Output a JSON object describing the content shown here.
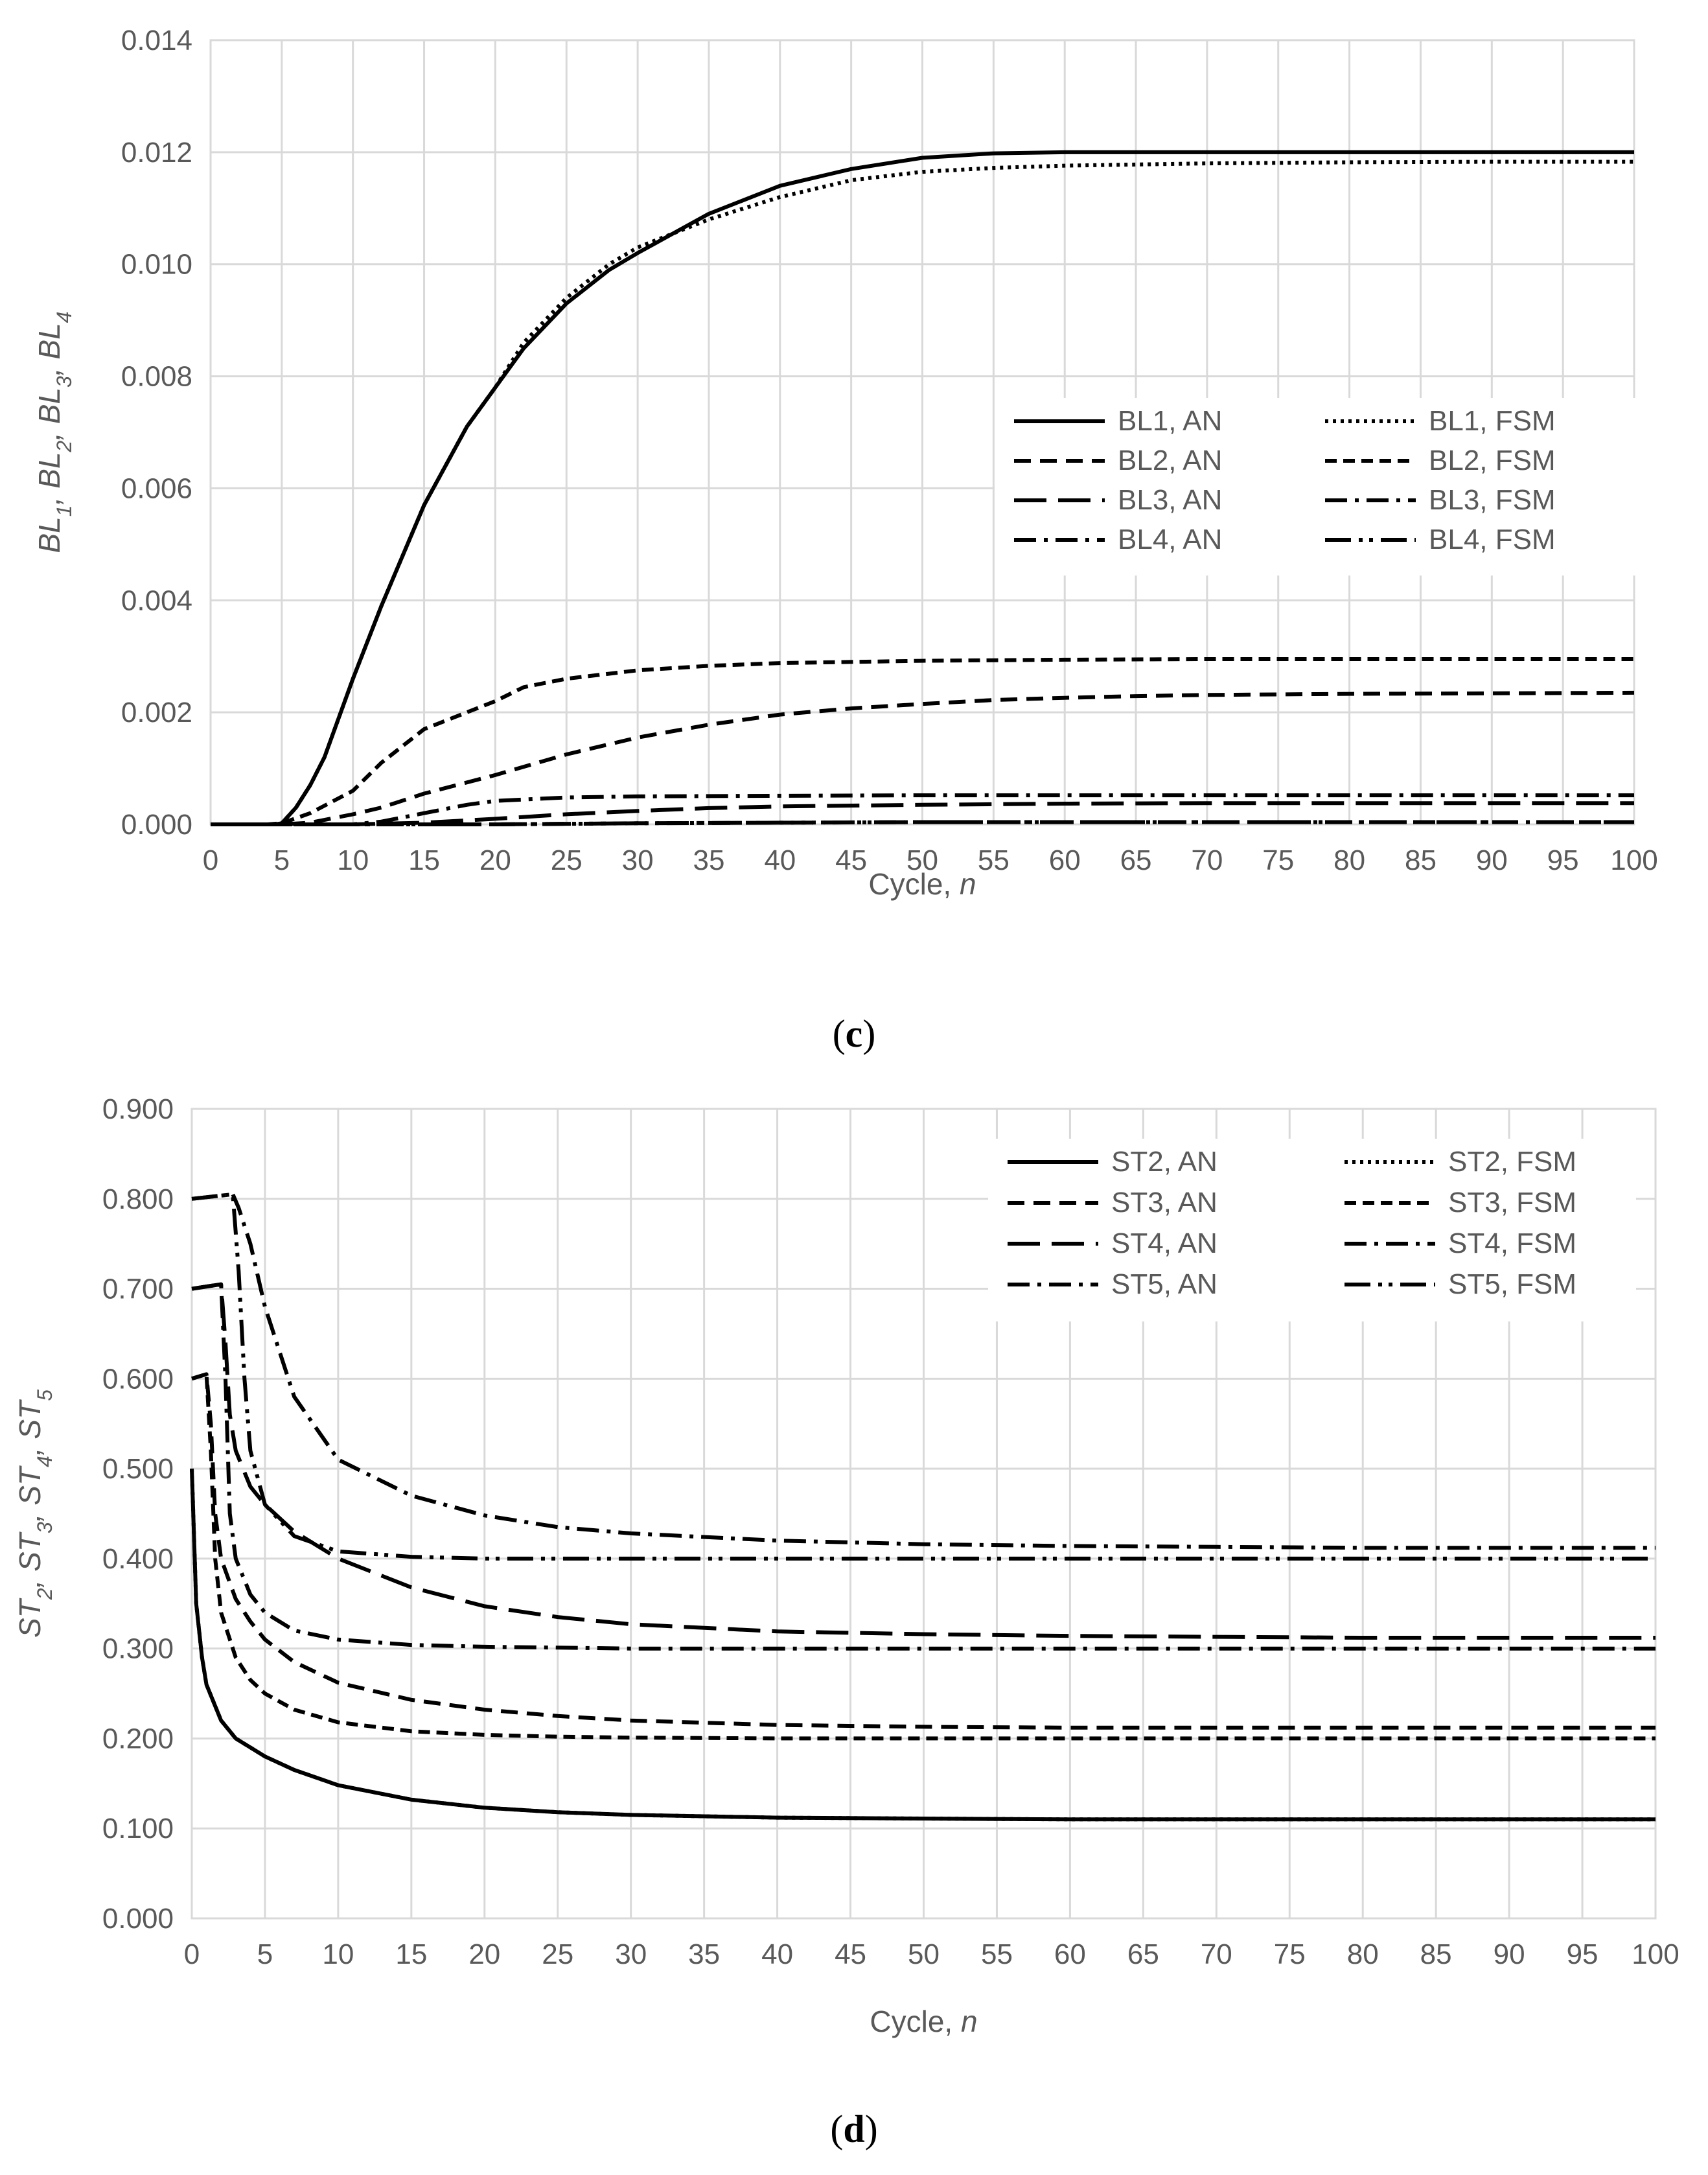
{
  "chart_data": [
    {
      "id": "c",
      "type": "line",
      "caption": "(c)",
      "xlabel": "Cycle, n",
      "ylabel": "BL1, BL2, BL3, BL4",
      "ylabel_parts": [
        {
          "t": "BL",
          "sub": "1"
        },
        {
          "t": ", BL",
          "sub": "2"
        },
        {
          "t": ", BL",
          "sub": "3"
        },
        {
          "t": ", BL",
          "sub": "4"
        }
      ],
      "xlim": [
        0,
        100
      ],
      "ylim": [
        0,
        0.014
      ],
      "x_ticks": [
        "0",
        "5",
        "10",
        "15",
        "20",
        "25",
        "30",
        "35",
        "40",
        "45",
        "50",
        "55",
        "60",
        "65",
        "70",
        "75",
        "80",
        "85",
        "90",
        "95",
        "100"
      ],
      "y_ticks": [
        "0.000",
        "0.002",
        "0.004",
        "0.006",
        "0.008",
        "0.010",
        "0.012",
        "0.014"
      ],
      "y_tick_values": [
        0,
        0.002,
        0.004,
        0.006,
        0.008,
        0.01,
        0.012,
        0.014
      ],
      "series": [
        {
          "name": "BL1, AN",
          "dash": "solid",
          "x": [
            0,
            4.5,
            5,
            6,
            7,
            8,
            10,
            12,
            15,
            18,
            20,
            22,
            25,
            28,
            30,
            35,
            40,
            45,
            50,
            55,
            60,
            70,
            80,
            90,
            100
          ],
          "y": [
            0,
            0,
            2e-05,
            0.0003,
            0.0007,
            0.0012,
            0.0026,
            0.0039,
            0.0057,
            0.0071,
            0.0078,
            0.0085,
            0.0093,
            0.0099,
            0.0102,
            0.0109,
            0.0114,
            0.0117,
            0.0119,
            0.01198,
            0.012,
            0.012,
            0.012,
            0.012,
            0.012
          ]
        },
        {
          "name": "BL2, AN",
          "dash": "dash",
          "x": [
            0,
            5,
            7,
            10,
            12,
            15,
            20,
            25,
            30,
            35,
            40,
            45,
            50,
            55,
            60,
            65,
            70,
            80,
            90,
            100
          ],
          "y": [
            0,
            0,
            3e-05,
            0.00018,
            0.0003,
            0.00055,
            0.00088,
            0.00125,
            0.00155,
            0.00178,
            0.00196,
            0.00207,
            0.00215,
            0.00222,
            0.00226,
            0.00229,
            0.00231,
            0.00233,
            0.00234,
            0.00235
          ]
        },
        {
          "name": "BL3, AN",
          "dash": "longdash",
          "x": [
            0,
            10,
            15,
            20,
            25,
            30,
            35,
            40,
            50,
            60,
            70,
            80,
            90,
            100
          ],
          "y": [
            0,
            0,
            3e-05,
            0.0001,
            0.00018,
            0.00024,
            0.00029,
            0.00032,
            0.00035,
            0.00037,
            0.00038,
            0.00038,
            0.00038,
            0.00038
          ]
        },
        {
          "name": "BL4, AN",
          "dash": "dashdot",
          "x": [
            0,
            20,
            30,
            40,
            50,
            60,
            70,
            80,
            90,
            100
          ],
          "y": [
            0,
            0,
            2e-05,
            3e-05,
            4e-05,
            4e-05,
            4e-05,
            4e-05,
            4e-05,
            4e-05
          ]
        },
        {
          "name": "BL1, FSM",
          "dash": "dot",
          "x": [
            0,
            4.5,
            5,
            6,
            7,
            8,
            10,
            12,
            15,
            18,
            20,
            22,
            25,
            28,
            30,
            35,
            40,
            45,
            50,
            55,
            60,
            70,
            80,
            90,
            100
          ],
          "y": [
            0,
            0,
            2e-05,
            0.0003,
            0.0007,
            0.0012,
            0.0026,
            0.0039,
            0.0057,
            0.0071,
            0.0078,
            0.0086,
            0.0094,
            0.01,
            0.0103,
            0.0108,
            0.0112,
            0.0115,
            0.01165,
            0.01172,
            0.01176,
            0.0118,
            0.01182,
            0.01183,
            0.01183
          ]
        },
        {
          "name": "BL2, FSM",
          "dash": "shortdash",
          "x": [
            0,
            4,
            5,
            7,
            10,
            12,
            15,
            18,
            20,
            22,
            25,
            30,
            35,
            40,
            50,
            60,
            70,
            80,
            90,
            100
          ],
          "y": [
            0,
            0,
            2e-05,
            0.0002,
            0.0006,
            0.0011,
            0.0017,
            0.002,
            0.0022,
            0.00245,
            0.0026,
            0.00275,
            0.00283,
            0.00288,
            0.00292,
            0.00294,
            0.00295,
            0.00295,
            0.00295,
            0.00295
          ]
        },
        {
          "name": "BL3, FSM",
          "dash": "dashdot",
          "x": [
            0,
            10,
            12,
            15,
            18,
            20,
            25,
            30,
            40,
            50,
            60,
            70,
            80,
            90,
            100
          ],
          "y": [
            0,
            0,
            5e-05,
            0.0002,
            0.00035,
            0.00042,
            0.00048,
            0.0005,
            0.00051,
            0.00052,
            0.00052,
            0.00052,
            0.00052,
            0.00052,
            0.00052
          ]
        },
        {
          "name": "BL4, FSM",
          "dash": "dashdotdot",
          "x": [
            0,
            20,
            30,
            40,
            50,
            60,
            70,
            80,
            90,
            100
          ],
          "y": [
            0,
            0,
            2e-05,
            3e-05,
            4e-05,
            4e-05,
            4e-05,
            4e-05,
            4e-05,
            4e-05
          ]
        }
      ]
    },
    {
      "id": "d",
      "type": "line",
      "caption": "(d)",
      "xlabel": "Cycle, n",
      "ylabel": "ST2, ST3, ST4, ST5",
      "ylabel_parts": [
        {
          "t": "ST",
          "sub": "2"
        },
        {
          "t": ", ST",
          "sub": "3"
        },
        {
          "t": ", ST",
          "sub": "4"
        },
        {
          "t": ", ST",
          "sub": "5"
        }
      ],
      "xlim": [
        0,
        100
      ],
      "ylim": [
        0,
        0.9
      ],
      "x_ticks": [
        "0",
        "5",
        "10",
        "15",
        "20",
        "25",
        "30",
        "35",
        "40",
        "45",
        "50",
        "55",
        "60",
        "65",
        "70",
        "75",
        "80",
        "85",
        "90",
        "95",
        "100"
      ],
      "y_ticks": [
        "0.000",
        "0.100",
        "0.200",
        "0.300",
        "0.400",
        "0.500",
        "0.600",
        "0.700",
        "0.800",
        "0.900"
      ],
      "y_tick_values": [
        0,
        0.1,
        0.2,
        0.3,
        0.4,
        0.5,
        0.6,
        0.7,
        0.8,
        0.9
      ],
      "series": [
        {
          "name": "ST2, AN",
          "dash": "solid",
          "x": [
            0,
            0.3,
            0.7,
            1,
            2,
            3,
            4,
            5,
            7,
            10,
            15,
            20,
            25,
            30,
            40,
            50,
            60,
            70,
            80,
            90,
            100
          ],
          "y": [
            0.5,
            0.35,
            0.29,
            0.26,
            0.22,
            0.2,
            0.19,
            0.18,
            0.165,
            0.148,
            0.132,
            0.123,
            0.118,
            0.115,
            0.112,
            0.111,
            0.11,
            0.11,
            0.11,
            0.11,
            0.11
          ]
        },
        {
          "name": "ST3, AN",
          "dash": "dash",
          "x": [
            0,
            1,
            1.3,
            1.6,
            2,
            3,
            4,
            5,
            7,
            10,
            15,
            20,
            25,
            30,
            40,
            50,
            60,
            70,
            80,
            90,
            100
          ],
          "y": [
            0.6,
            0.605,
            0.55,
            0.45,
            0.4,
            0.355,
            0.33,
            0.31,
            0.285,
            0.262,
            0.243,
            0.232,
            0.225,
            0.22,
            0.215,
            0.213,
            0.212,
            0.212,
            0.212,
            0.212,
            0.212
          ]
        },
        {
          "name": "ST4, AN",
          "dash": "longdash",
          "x": [
            0,
            2,
            2.3,
            2.6,
            3,
            4,
            5,
            7,
            10,
            15,
            20,
            25,
            30,
            40,
            50,
            60,
            70,
            80,
            90,
            100
          ],
          "y": [
            0.7,
            0.705,
            0.64,
            0.56,
            0.52,
            0.48,
            0.46,
            0.43,
            0.4,
            0.368,
            0.347,
            0.335,
            0.327,
            0.319,
            0.316,
            0.314,
            0.313,
            0.312,
            0.312,
            0.312
          ]
        },
        {
          "name": "ST5, AN",
          "dash": "dashdot",
          "x": [
            0,
            2.8,
            3.2,
            3.6,
            4,
            5,
            7,
            10,
            15,
            20,
            25,
            30,
            40,
            50,
            60,
            70,
            80,
            90,
            100
          ],
          "y": [
            0.8,
            0.805,
            0.79,
            0.77,
            0.75,
            0.68,
            0.58,
            0.51,
            0.47,
            0.448,
            0.435,
            0.428,
            0.42,
            0.416,
            0.414,
            0.413,
            0.412,
            0.412,
            0.412
          ]
        },
        {
          "name": "ST2, FSM",
          "dash": "dot",
          "x": [
            0,
            0.3,
            0.7,
            1,
            2,
            3,
            4,
            5,
            7,
            10,
            15,
            20,
            25,
            30,
            40,
            50,
            60,
            70,
            80,
            90,
            100
          ],
          "y": [
            0.5,
            0.35,
            0.29,
            0.26,
            0.22,
            0.2,
            0.19,
            0.18,
            0.165,
            0.148,
            0.132,
            0.123,
            0.118,
            0.115,
            0.112,
            0.111,
            0.11,
            0.11,
            0.11,
            0.11,
            0.11
          ]
        },
        {
          "name": "ST3, FSM",
          "dash": "shortdash",
          "x": [
            0,
            1,
            1.3,
            1.6,
            2,
            3,
            4,
            5,
            7,
            10,
            15,
            20,
            25,
            30,
            40,
            50,
            60,
            70,
            80,
            90,
            100
          ],
          "y": [
            0.6,
            0.605,
            0.52,
            0.4,
            0.34,
            0.29,
            0.265,
            0.25,
            0.232,
            0.218,
            0.208,
            0.204,
            0.202,
            0.201,
            0.2,
            0.2,
            0.2,
            0.2,
            0.2,
            0.2,
            0.2
          ]
        },
        {
          "name": "ST4, FSM",
          "dash": "dashdot",
          "x": [
            0,
            2,
            2.3,
            2.6,
            3,
            4,
            5,
            7,
            10,
            15,
            20,
            25,
            30,
            40,
            50,
            60,
            70,
            80,
            90,
            100
          ],
          "y": [
            0.7,
            0.705,
            0.6,
            0.45,
            0.4,
            0.36,
            0.34,
            0.32,
            0.31,
            0.304,
            0.302,
            0.301,
            0.3,
            0.3,
            0.3,
            0.3,
            0.3,
            0.3,
            0.3,
            0.3
          ]
        },
        {
          "name": "ST5, FSM",
          "dash": "dashdotdot",
          "x": [
            0,
            2.8,
            3.2,
            3.6,
            4,
            5,
            7,
            10,
            15,
            20,
            25,
            30,
            40,
            50,
            60,
            70,
            80,
            90,
            100
          ],
          "y": [
            0.8,
            0.805,
            0.72,
            0.6,
            0.52,
            0.46,
            0.425,
            0.408,
            0.402,
            0.4,
            0.4,
            0.4,
            0.4,
            0.4,
            0.4,
            0.4,
            0.4,
            0.4,
            0.4
          ]
        }
      ]
    }
  ]
}
